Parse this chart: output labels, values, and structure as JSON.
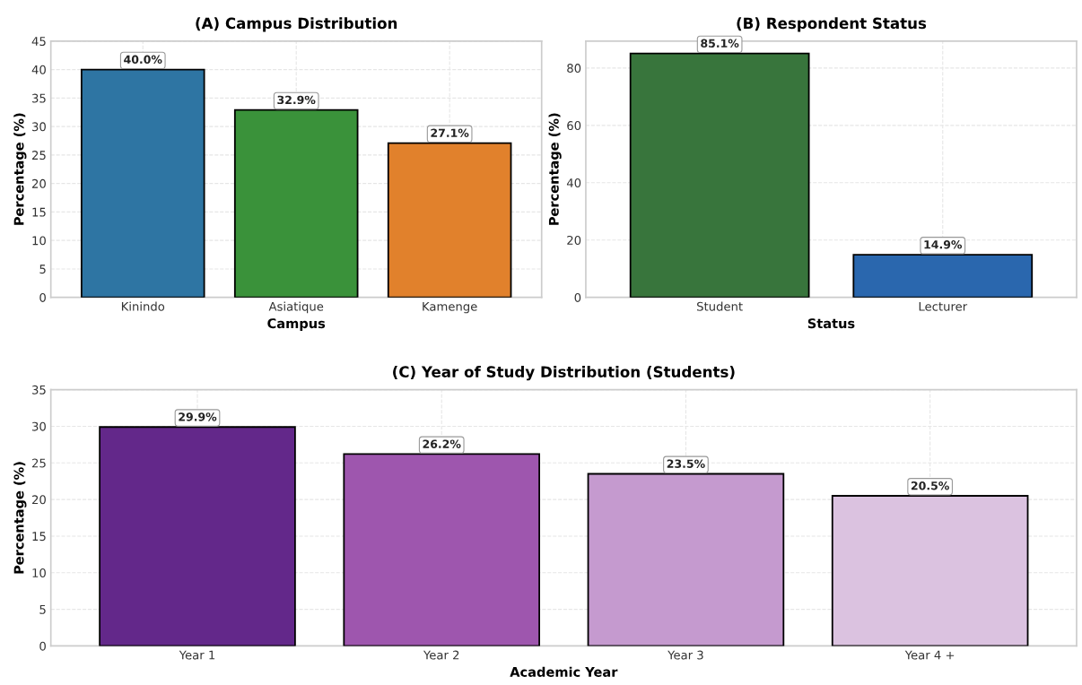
{
  "chart_data": [
    {
      "type": "bar",
      "title": "(A) Campus Distribution",
      "xlabel": "Campus",
      "ylabel": "Percentage (%)",
      "categories": [
        "Kinindo",
        "Asiatique",
        "Kamenge"
      ],
      "values": [
        40.0,
        32.9,
        27.1
      ],
      "colors": [
        "#2e75a3",
        "#3a923a",
        "#e1812c"
      ],
      "value_labels": [
        "40.0%",
        "32.9%",
        "27.1%"
      ],
      "ylim": [
        0,
        45
      ],
      "yticks": [
        0,
        5,
        10,
        15,
        20,
        25,
        30,
        35,
        40,
        45
      ],
      "grid": true
    },
    {
      "type": "bar",
      "title": "(B) Respondent Status",
      "xlabel": "Status",
      "ylabel": "Percentage (%)",
      "categories": [
        "Student",
        "Lecturer"
      ],
      "values": [
        85.1,
        14.9
      ],
      "colors": [
        "#38753c",
        "#2a67ae"
      ],
      "value_labels": [
        "85.1%",
        "14.9%"
      ],
      "ylim": [
        0,
        89.4
      ],
      "yticks": [
        0,
        20,
        40,
        60,
        80
      ],
      "grid": true
    },
    {
      "type": "bar",
      "title": "(C) Year of Study Distribution (Students)",
      "xlabel": "Academic Year",
      "ylabel": "Percentage (%)",
      "categories": [
        "Year 1",
        "Year 2",
        "Year 3",
        "Year 4 +"
      ],
      "values": [
        29.9,
        26.2,
        23.5,
        20.5
      ],
      "colors": [
        "#63288a",
        "#9e56ae",
        "#c59acf",
        "#dbc2e0"
      ],
      "value_labels": [
        "29.9%",
        "26.2%",
        "23.5%",
        "20.5%"
      ],
      "ylim": [
        0,
        35
      ],
      "yticks": [
        0,
        5,
        10,
        15,
        20,
        25,
        30,
        35
      ],
      "grid": true
    }
  ]
}
